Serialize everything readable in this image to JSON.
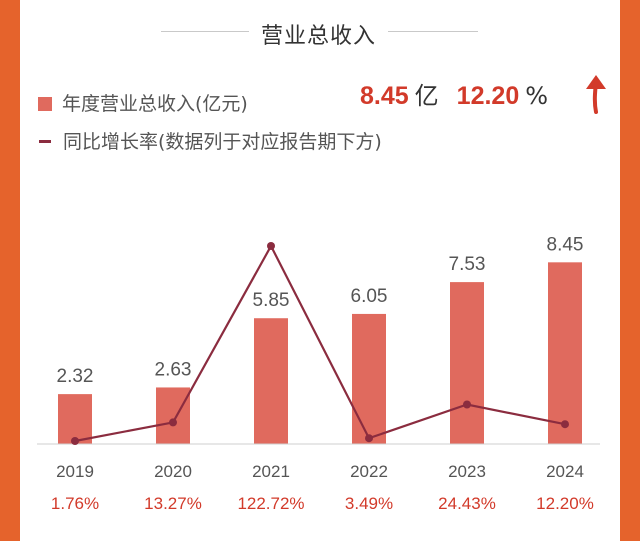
{
  "title": "营业总收入",
  "legend": {
    "bar_label": "年度营业总收入(亿元)",
    "line_label": "同比增长率(数据列于对应报告期下方)"
  },
  "headline": {
    "value": "8.45",
    "value_unit": "亿",
    "growth": "12.20",
    "growth_unit": "%",
    "trend_icon": "up-arrow-icon"
  },
  "colors": {
    "background": "#e5632c",
    "bar": "#e06a5e",
    "line": "#8b2c3f",
    "pct_text": "#d23a2a",
    "headline": "#d23a2a"
  },
  "chart_data": {
    "type": "bar",
    "categories": [
      "2019",
      "2020",
      "2021",
      "2022",
      "2023",
      "2024"
    ],
    "series": [
      {
        "name": "年度营业总收入(亿元)",
        "type": "bar",
        "values": [
          2.32,
          2.63,
          5.85,
          6.05,
          7.53,
          8.45
        ],
        "value_labels": [
          "2.32",
          "2.63",
          "5.85",
          "6.05",
          "7.53",
          "8.45"
        ]
      },
      {
        "name": "同比增长率(数据列于对应报告期下方)",
        "type": "line",
        "values": [
          1.76,
          13.27,
          122.72,
          3.49,
          24.43,
          12.2
        ],
        "value_labels": [
          "1.76%",
          "13.27%",
          "122.72%",
          "3.49%",
          "24.43%",
          "12.20%"
        ]
      }
    ],
    "grid": false,
    "legend_position": "top-left"
  }
}
